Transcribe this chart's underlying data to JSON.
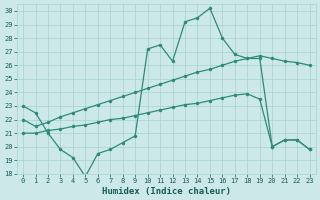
{
  "xlabel": "Humidex (Indice chaleur)",
  "x_values": [
    0,
    1,
    2,
    3,
    4,
    5,
    6,
    7,
    8,
    9,
    10,
    11,
    12,
    13,
    14,
    15,
    16,
    17,
    18,
    19,
    20,
    21,
    22,
    23
  ],
  "top_y": [
    23.0,
    22.5,
    21.0,
    19.8,
    19.2,
    17.8,
    19.5,
    19.8,
    20.3,
    20.8,
    27.2,
    27.5,
    26.3,
    29.2,
    29.5,
    30.2,
    28.0,
    26.8,
    26.5,
    26.5,
    20.0,
    20.5,
    20.5,
    19.8
  ],
  "mid_y": [
    22.0,
    21.5,
    21.8,
    22.2,
    22.5,
    22.8,
    23.1,
    23.4,
    23.7,
    24.0,
    24.3,
    24.6,
    24.9,
    25.2,
    25.5,
    25.7,
    26.0,
    26.3,
    26.5,
    26.7,
    26.5,
    26.3,
    26.2,
    26.0
  ],
  "low_y": [
    21.0,
    21.0,
    21.2,
    21.3,
    21.5,
    21.6,
    21.8,
    22.0,
    22.1,
    22.3,
    22.5,
    22.7,
    22.9,
    23.1,
    23.2,
    23.4,
    23.6,
    23.8,
    23.9,
    23.5,
    20.0,
    20.5,
    20.5,
    19.8
  ],
  "line_color": "#2e8b7a",
  "bg_color": "#cce8e8",
  "grid_color": "#a8d0d0",
  "tick_color": "#1a5a5a",
  "xlabel_color": "#1a5a5a"
}
